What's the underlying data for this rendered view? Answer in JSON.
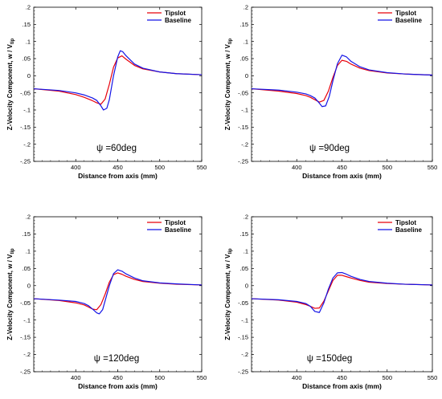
{
  "figure": {
    "panels": [
      "p60",
      "p90",
      "p120",
      "p150"
    ]
  },
  "chart_data": [
    {
      "id": "p60",
      "type": "line",
      "title": "",
      "xlabel": "Distance from axis (mm)",
      "ylabel": "Z-Velocity Component, w / V",
      "ylabel_sub": "tip",
      "annotation": "ψ =60deg",
      "xlim": [
        350,
        550
      ],
      "ylim": [
        -0.25,
        0.2
      ],
      "xticks": [
        400,
        450,
        500,
        550
      ],
      "yticks": [
        -0.25,
        -0.2,
        -0.15,
        -0.1,
        -0.05,
        0,
        0.05,
        0.1,
        0.15,
        0.2
      ],
      "legend_position": "top-right",
      "series": [
        {
          "name": "Tipslot",
          "color": "#e8000b",
          "x": [
            350,
            380,
            400,
            410,
            420,
            425,
            430,
            435,
            440,
            445,
            450,
            455,
            460,
            470,
            480,
            500,
            520,
            550
          ],
          "y": [
            -0.038,
            -0.045,
            -0.055,
            -0.063,
            -0.073,
            -0.079,
            -0.083,
            -0.068,
            -0.025,
            0.025,
            0.052,
            0.058,
            0.048,
            0.03,
            0.02,
            0.011,
            0.006,
            0.003
          ]
        },
        {
          "name": "Baseline",
          "color": "#1414e6",
          "x": [
            350,
            380,
            400,
            410,
            420,
            425,
            430,
            433,
            437,
            440,
            445,
            450,
            453,
            456,
            460,
            470,
            480,
            500,
            520,
            550
          ],
          "y": [
            -0.038,
            -0.043,
            -0.05,
            -0.056,
            -0.065,
            -0.072,
            -0.088,
            -0.1,
            -0.095,
            -0.07,
            0.0,
            0.055,
            0.073,
            0.07,
            0.058,
            0.034,
            0.022,
            0.011,
            0.006,
            0.003
          ]
        }
      ]
    },
    {
      "id": "p90",
      "type": "line",
      "title": "",
      "xlabel": "Distance from axis (mm)",
      "ylabel": "Z-Velocity Component, w / V",
      "ylabel_sub": "tip",
      "annotation": "ψ =90deg",
      "xlim": [
        350,
        550
      ],
      "ylim": [
        -0.25,
        0.2
      ],
      "xticks": [
        400,
        450,
        500,
        550
      ],
      "yticks": [
        -0.25,
        -0.2,
        -0.15,
        -0.1,
        -0.05,
        0,
        0.05,
        0.1,
        0.15,
        0.2
      ],
      "legend_position": "top-right",
      "series": [
        {
          "name": "Tipslot",
          "color": "#e8000b",
          "x": [
            350,
            380,
            400,
            410,
            415,
            420,
            425,
            430,
            435,
            440,
            445,
            450,
            455,
            460,
            470,
            480,
            500,
            520,
            550
          ],
          "y": [
            -0.038,
            -0.045,
            -0.052,
            -0.058,
            -0.063,
            -0.07,
            -0.077,
            -0.072,
            -0.045,
            -0.005,
            0.03,
            0.045,
            0.042,
            0.034,
            0.022,
            0.015,
            0.008,
            0.005,
            0.002
          ]
        },
        {
          "name": "Baseline",
          "color": "#1414e6",
          "x": [
            350,
            380,
            400,
            410,
            415,
            420,
            425,
            428,
            432,
            436,
            440,
            445,
            450,
            455,
            460,
            470,
            480,
            500,
            520,
            550
          ],
          "y": [
            -0.038,
            -0.042,
            -0.048,
            -0.053,
            -0.058,
            -0.065,
            -0.08,
            -0.09,
            -0.088,
            -0.06,
            -0.015,
            0.035,
            0.06,
            0.055,
            0.042,
            0.026,
            0.017,
            0.009,
            0.005,
            0.002
          ]
        }
      ]
    },
    {
      "id": "p120",
      "type": "line",
      "title": "",
      "xlabel": "Distance from axis (mm)",
      "ylabel": "Z-Velocity Component, w / V",
      "ylabel_sub": "tip",
      "annotation": "ψ =120deg",
      "xlim": [
        350,
        550
      ],
      "ylim": [
        -0.25,
        0.2
      ],
      "xticks": [
        400,
        450,
        500,
        550
      ],
      "yticks": [
        -0.25,
        -0.2,
        -0.15,
        -0.1,
        -0.05,
        0,
        0.05,
        0.1,
        0.15,
        0.2
      ],
      "legend_position": "top-right",
      "series": [
        {
          "name": "Tipslot",
          "color": "#e8000b",
          "x": [
            350,
            380,
            400,
            410,
            415,
            420,
            425,
            430,
            435,
            440,
            445,
            450,
            455,
            460,
            470,
            480,
            500,
            520,
            550
          ],
          "y": [
            -0.038,
            -0.043,
            -0.05,
            -0.056,
            -0.062,
            -0.068,
            -0.07,
            -0.055,
            -0.025,
            0.01,
            0.032,
            0.037,
            0.033,
            0.027,
            0.018,
            0.012,
            0.007,
            0.004,
            0.002
          ]
        },
        {
          "name": "Baseline",
          "color": "#1414e6",
          "x": [
            350,
            380,
            400,
            410,
            415,
            420,
            425,
            428,
            432,
            436,
            440,
            445,
            450,
            455,
            460,
            470,
            480,
            500,
            520,
            550
          ],
          "y": [
            -0.038,
            -0.042,
            -0.046,
            -0.052,
            -0.058,
            -0.068,
            -0.079,
            -0.082,
            -0.07,
            -0.035,
            0.0,
            0.035,
            0.046,
            0.042,
            0.034,
            0.022,
            0.014,
            0.008,
            0.005,
            0.002
          ]
        }
      ]
    },
    {
      "id": "p150",
      "type": "line",
      "title": "",
      "xlabel": "Distance from axis (mm)",
      "ylabel": "Z-Velocity Component, w / V",
      "ylabel_sub": "tip",
      "annotation": "ψ =150deg",
      "xlim": [
        350,
        550
      ],
      "ylim": [
        -0.25,
        0.2
      ],
      "xticks": [
        400,
        450,
        500,
        550
      ],
      "yticks": [
        -0.25,
        -0.2,
        -0.15,
        -0.1,
        -0.05,
        0,
        0.05,
        0.1,
        0.15,
        0.2
      ],
      "legend_position": "top-right",
      "series": [
        {
          "name": "Tipslot",
          "color": "#e8000b",
          "x": [
            350,
            380,
            400,
            410,
            415,
            420,
            425,
            430,
            435,
            440,
            445,
            450,
            455,
            460,
            470,
            480,
            500,
            520,
            550
          ],
          "y": [
            -0.038,
            -0.042,
            -0.048,
            -0.055,
            -0.06,
            -0.066,
            -0.065,
            -0.045,
            -0.015,
            0.015,
            0.03,
            0.03,
            0.026,
            0.022,
            0.015,
            0.01,
            0.006,
            0.004,
            0.002
          ]
        },
        {
          "name": "Baseline",
          "color": "#1414e6",
          "x": [
            350,
            380,
            400,
            410,
            415,
            420,
            425,
            430,
            435,
            440,
            445,
            450,
            455,
            460,
            470,
            480,
            500,
            520,
            550
          ],
          "y": [
            -0.038,
            -0.041,
            -0.046,
            -0.052,
            -0.06,
            -0.075,
            -0.078,
            -0.05,
            -0.01,
            0.022,
            0.037,
            0.038,
            0.033,
            0.027,
            0.018,
            0.012,
            0.007,
            0.004,
            0.002
          ]
        }
      ]
    }
  ]
}
